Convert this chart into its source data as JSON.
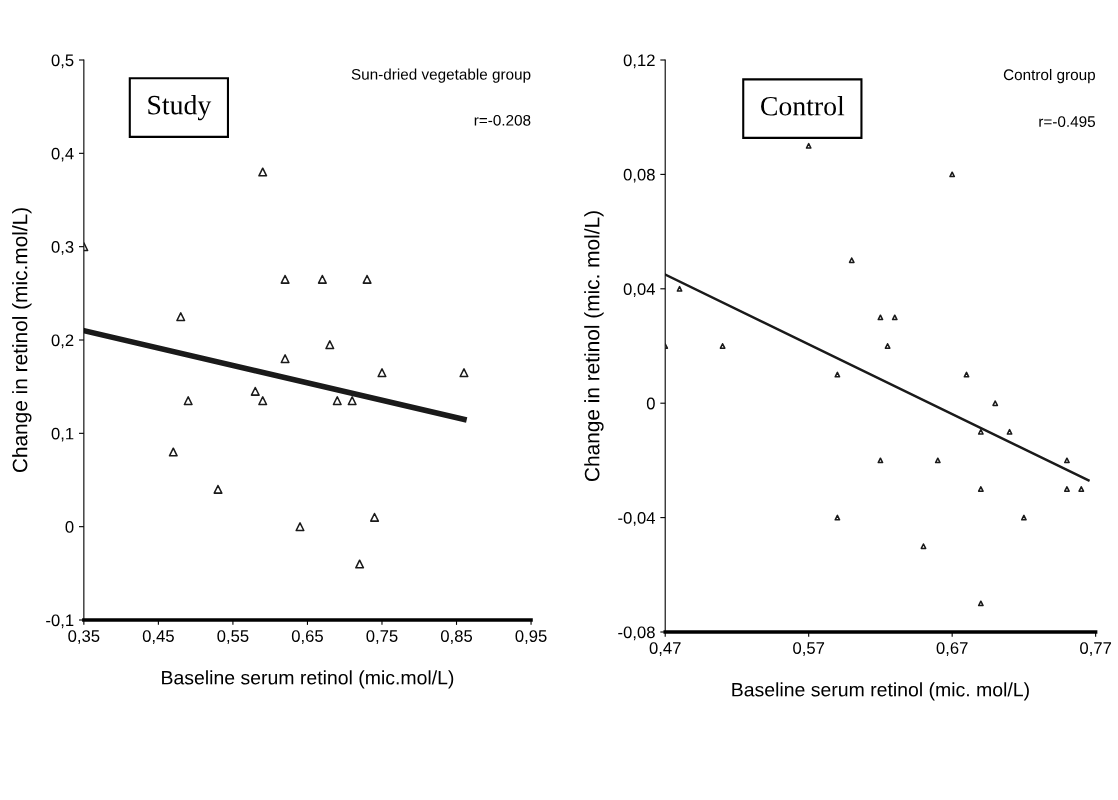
{
  "chart_data": [
    {
      "type": "scatter",
      "title": "Sun-dried vegetable group",
      "xlabel": "Baseline serum retinol (mic.mol/L)",
      "ylabel": "Change in retinol (mic.mol/L)",
      "annotations": [
        "Study",
        "r=-0.208"
      ],
      "xlim": [
        0.35,
        0.95
      ],
      "ylim": [
        -0.1,
        0.5
      ],
      "xticks": [
        {
          "value": 0.35,
          "label": "0,35"
        },
        {
          "value": 0.45,
          "label": "0,45"
        },
        {
          "value": 0.55,
          "label": "0,55"
        },
        {
          "value": 0.65,
          "label": "0,65"
        },
        {
          "value": 0.75,
          "label": "0,75"
        },
        {
          "value": 0.85,
          "label": "0,85"
        },
        {
          "value": 0.95,
          "label": "0,95"
        }
      ],
      "yticks": [
        {
          "value": -0.1,
          "label": "-0,1"
        },
        0,
        {
          "value": 0.1,
          "label": "0,1"
        },
        {
          "value": 0.2,
          "label": "0,2"
        },
        {
          "value": 0.3,
          "label": "0,3"
        },
        {
          "value": 0.4,
          "label": "0,4"
        },
        {
          "value": 0.5,
          "label": "0,5"
        }
      ],
      "grid": false,
      "legend": false,
      "series": [
        {
          "marker": "triangle",
          "color": "#1a1a1a",
          "x": [
            0.35,
            0.59,
            0.48,
            0.62,
            0.67,
            0.73,
            0.62,
            0.68,
            0.75,
            0.86,
            0.58,
            0.59,
            0.49,
            0.69,
            0.71,
            0.47,
            0.53,
            0.64,
            0.74,
            0.72
          ],
          "values": [
            0.3,
            0.38,
            0.225,
            0.265,
            0.265,
            0.265,
            0.18,
            0.195,
            0.165,
            0.165,
            0.145,
            0.135,
            0.135,
            0.135,
            0.135,
            0.08,
            0.04,
            0.0,
            0.01,
            -0.04
          ]
        },
        {
          "type": "line",
          "color": "#1a1a1a",
          "x": [
            0.35,
            0.86
          ],
          "values": [
            0.21,
            0.115
          ]
        }
      ]
    },
    {
      "type": "scatter",
      "title": "Control group",
      "xlabel": "Baseline serum retinol (mic. mol/L)",
      "ylabel": "Change in retinol (mic. mol/L)",
      "annotations": [
        "Control",
        "r=-0.495"
      ],
      "xlim": [
        0.47,
        0.77
      ],
      "ylim": [
        -0.08,
        0.12
      ],
      "xticks": [
        {
          "value": 0.47,
          "label": "0,47"
        },
        {
          "value": 0.57,
          "label": "0,57"
        },
        {
          "value": 0.67,
          "label": "0,67"
        },
        {
          "value": 0.77,
          "label": "0,77"
        }
      ],
      "yticks": [
        {
          "value": -0.08,
          "label": "-0,08"
        },
        {
          "value": -0.04,
          "label": "-0,04"
        },
        0,
        {
          "value": 0.04,
          "label": "0,04"
        },
        {
          "value": 0.08,
          "label": "0,08"
        },
        {
          "value": 0.12,
          "label": "0,12"
        }
      ],
      "grid": false,
      "legend": false,
      "series": [
        {
          "marker": "triangle",
          "color": "#1a1a1a",
          "x": [
            0.47,
            0.48,
            0.51,
            0.57,
            0.6,
            0.59,
            0.62,
            0.63,
            0.625,
            0.67,
            0.68,
            0.7,
            0.69,
            0.71,
            0.62,
            0.66,
            0.75,
            0.69,
            0.75,
            0.76,
            0.59,
            0.72,
            0.65,
            0.69
          ],
          "values": [
            0.02,
            0.04,
            0.02,
            0.09,
            0.05,
            0.01,
            0.03,
            0.03,
            0.02,
            0.08,
            0.01,
            0.0,
            -0.01,
            -0.01,
            -0.02,
            -0.02,
            -0.02,
            -0.03,
            -0.03,
            -0.03,
            -0.04,
            -0.04,
            -0.05,
            -0.07
          ]
        },
        {
          "type": "line",
          "color": "#1a1a1a",
          "x": [
            0.47,
            0.765
          ],
          "values": [
            0.045,
            -0.027
          ]
        }
      ]
    }
  ]
}
